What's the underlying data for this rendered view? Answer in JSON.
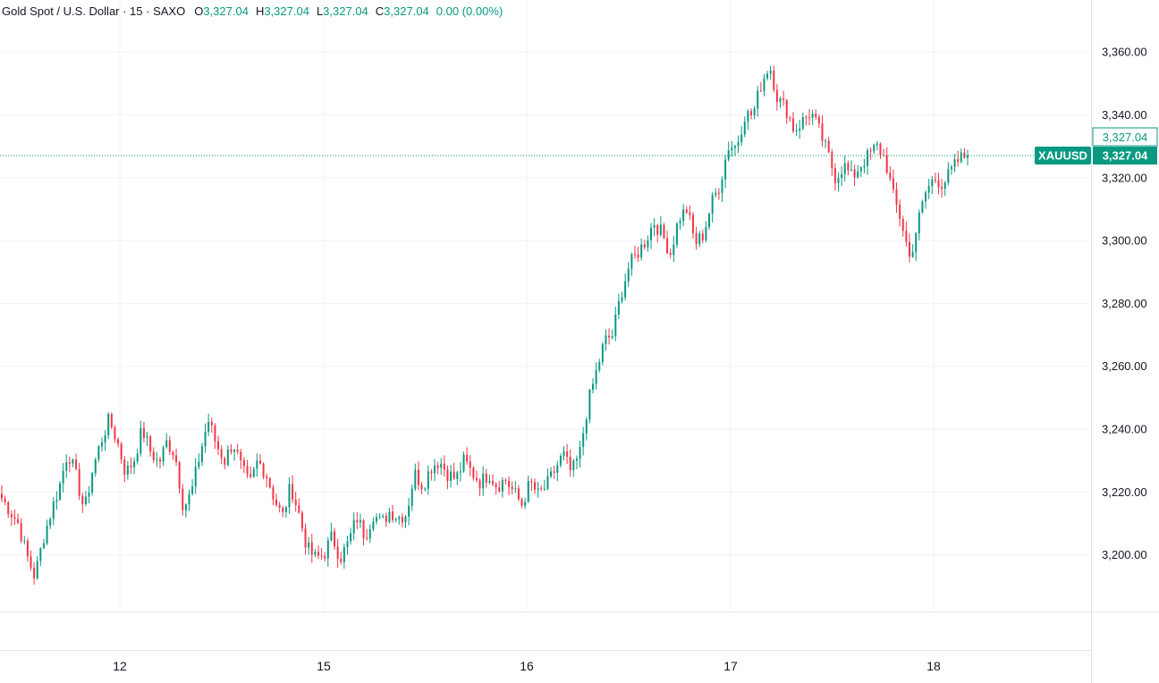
{
  "legend": {
    "symbol": "Gold Spot / U.S. Dollar · 15 · SAXO",
    "open_key": "O",
    "open": "3,327.04",
    "high_key": "H",
    "high": "3,327.04",
    "low_key": "L",
    "low": "3,327.04",
    "close_key": "C",
    "close": "3,327.04",
    "change": "0.00 (0.00%)"
  },
  "colors": {
    "up": "#089981",
    "down": "#f23645",
    "grid": "#f0f3fa",
    "text": "#131722"
  },
  "chart_data": {
    "type": "candlestick",
    "title": "Gold Spot / U.S. Dollar · 15 · SAXO",
    "symbol_badge": "XAUUSD",
    "last_price": 3327.04,
    "last_price_label": "3,327.04",
    "ylim": [
      3182,
      3368
    ],
    "y_ticks": [
      3200,
      3220,
      3240,
      3260,
      3280,
      3300,
      3320,
      3340,
      3360
    ],
    "y_tick_labels": [
      "3,200.00",
      "3,220.00",
      "3,240.00",
      "3,260.00",
      "3,280.00",
      "3,300.00",
      "3,320.00",
      "3,340.00",
      "3,360.00"
    ],
    "x_ticks": [
      "12",
      "15",
      "16",
      "17",
      "18"
    ],
    "grid": true,
    "anchors": [
      [
        3218,
        3214,
        3210,
        3200,
        3193,
        3205,
        3214,
        3222,
        3233,
        3225,
        3214,
        3227,
        3236,
        3243,
        3236,
        3226,
        3230,
        3240,
        3233,
        3229,
        3236,
        3232,
        3215,
        3220,
        3232,
        3243,
        3235,
        3230,
        3236,
        3228,
        3222,
        3230,
        3226,
        3218,
        3212,
        3222,
        3213,
        3202,
        3199,
        3200,
        3206,
        3199,
        3204,
        3212,
        3206,
        3213,
        3210,
        3214,
        3212,
        3213,
        3226,
        3222,
        3228,
        3230,
        3226,
        3224,
        3230,
        3226,
        3223,
        3226,
        3222,
        3224,
        3220,
        3216,
        3223,
        3219,
        3222,
        3227,
        3232,
        3226,
        3232,
        3248,
        3258,
        3268,
        3270,
        3283,
        3292,
        3296,
        3300,
        3306,
        3302,
        3296,
        3307,
        3310,
        3299,
        3302,
        3312,
        3318,
        3330,
        3330,
        3340,
        3340,
        3350,
        3356,
        3345,
        3342,
        3335,
        3338,
        3341,
        3335,
        3328,
        3320,
        3324,
        3320,
        3324,
        3327,
        3330,
        3326,
        3314,
        3306,
        3294,
        3306,
        3316,
        3320,
        3318,
        3322,
        3326,
        3327.04
      ]
    ]
  }
}
